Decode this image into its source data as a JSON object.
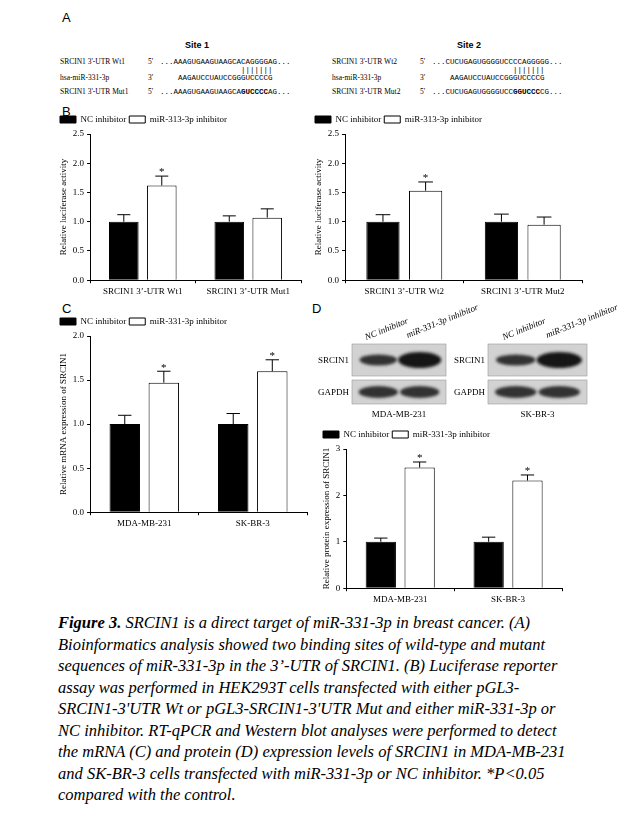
{
  "panel_labels": [
    "A",
    "B",
    "C",
    "D"
  ],
  "panel_A": {
    "sites": [
      {
        "title": "Site 1",
        "wt": {
          "name": "SRCIN1 3'-UTR Wt1",
          "end": "5'",
          "sequence": "...AAAGUGAAGUAAGCACAGGGGAG..."
        },
        "pairing": "|||||||",
        "mirna": {
          "name": "hsa-miR-331-3p",
          "end": "3'",
          "sequence": "AAGAUCCUAUCCGGGUCCCCG"
        },
        "mut": {
          "name": "SRCIN1 3'-UTR Mut1",
          "end": "5'",
          "before": "...AAAGUGAAGUAAGCA",
          "mutated": "GUCCCC",
          "after": "AG..."
        }
      },
      {
        "title": "Site 2",
        "wt": {
          "name": "SRCIN1 3'-UTR Wt2",
          "end": "5'",
          "sequence": "...CUCUGAGUGGGGUCCCCAGGGGG..."
        },
        "pairing": "|||||||",
        "mirna": {
          "name": "hsa-miR-331-3p",
          "end": "3'",
          "sequence": "AAGAUCCUAUCCGGGUCCCCG"
        },
        "mut": {
          "name": "SRCIN1 3'-UTR Mut2",
          "end": "5'",
          "before": "...CUCUGAGUGGGGUCC",
          "mutated": "GGUCCC",
          "after": "CG..."
        }
      }
    ]
  },
  "chart_data": [
    {
      "type": "bar",
      "categories": [
        "SRCIN1 3’-UTR Wt1",
        "SRCIN1 3’-UTR Mut1"
      ],
      "series": [
        {
          "name": "NC inhibitor",
          "color": "#000000",
          "values": [
            1.0,
            1.0
          ],
          "errors": [
            0.12,
            0.1
          ]
        },
        {
          "name": "miR-313-3p inhibitor",
          "color": "#ffffff",
          "values": [
            1.62,
            1.07
          ],
          "errors": [
            0.16,
            0.15
          ],
          "significance": [
            "*",
            null
          ]
        }
      ],
      "ylabel": "Relative luciferase activity",
      "ylim": [
        0,
        2.5
      ],
      "yticks": [
        {
          "value": 0,
          "label": "0.0"
        },
        0.5,
        {
          "value": 1,
          "label": "1.0"
        },
        1.5,
        {
          "value": 2,
          "label": "2.0"
        },
        2.5
      ],
      "legend": "top-left",
      "grid": false
    },
    {
      "type": "bar",
      "categories": [
        "SRCIN1 3’-UTR Wt2",
        "SRCIN1 3’-UTR Mut2"
      ],
      "series": [
        {
          "name": "NC inhibitor",
          "color": "#000000",
          "values": [
            1.0,
            1.0
          ],
          "errors": [
            0.12,
            0.13
          ]
        },
        {
          "name": "miR-313-3p inhibitor",
          "color": "#ffffff",
          "values": [
            1.53,
            0.95
          ],
          "errors": [
            0.15,
            0.13
          ],
          "significance": [
            "*",
            null
          ]
        }
      ],
      "ylabel": "Relative luciferase activity",
      "ylim": [
        0,
        2.5
      ],
      "yticks": [
        {
          "value": 0,
          "label": "0.0"
        },
        0.5,
        {
          "value": 1,
          "label": "1.0"
        },
        1.5,
        {
          "value": 2,
          "label": "2.0"
        },
        2.5
      ],
      "legend": "top-left",
      "grid": false
    },
    {
      "type": "bar",
      "categories": [
        "MDA-MB-231",
        "SK-BR-3"
      ],
      "series": [
        {
          "name": "NC inhibitor",
          "color": "#000000",
          "values": [
            1.0,
            1.0
          ],
          "errors": [
            0.1,
            0.12
          ]
        },
        {
          "name": "miR-331-3p inhibitor",
          "color": "#ffffff",
          "values": [
            1.47,
            1.6
          ],
          "errors": [
            0.13,
            0.13
          ],
          "significance": [
            "*",
            "*"
          ]
        }
      ],
      "ylabel": "Relative mRNA expression of SRCIN1",
      "ylim": [
        0,
        2.0
      ],
      "yticks": [
        {
          "value": 0,
          "label": "0.0"
        },
        0.5,
        {
          "value": 1,
          "label": "1.0"
        },
        1.5,
        {
          "value": 2,
          "label": "2.0"
        }
      ],
      "legend": "top-left",
      "grid": false
    },
    {
      "type": "bar",
      "categories": [
        "MDA-MB-231",
        "SK-BR-3"
      ],
      "series": [
        {
          "name": "NC inhibitor",
          "color": "#000000",
          "values": [
            1.0,
            1.0
          ],
          "errors": [
            0.08,
            0.1
          ]
        },
        {
          "name": "miR-331-3p inhibitor",
          "color": "#ffffff",
          "values": [
            2.6,
            2.32
          ],
          "errors": [
            0.12,
            0.12
          ],
          "significance": [
            "*",
            "*"
          ]
        }
      ],
      "ylabel": "Relative protein expression of SRCIN1",
      "ylim": [
        0,
        3
      ],
      "yticks": [
        0,
        1,
        2,
        3
      ],
      "legend": "top-left",
      "grid": false
    }
  ],
  "panel_D_blots": {
    "treatments": [
      "NC inhibitor",
      "miR-331-3p inhibitor"
    ],
    "proteins": [
      "SRCIN1",
      "GAPDH"
    ],
    "cell_lines": [
      "MDA-MB-231",
      "SK-BR-3"
    ]
  },
  "caption": {
    "label": "Figure 3.",
    "text": "SRCIN1 is a direct target of miR-331-3p in breast cancer. (A) Bioinformatics analysis showed two binding sites of wild-type and mutant sequences of miR-331-3p in the 3’-UTR of SRCIN1. (B) Luciferase reporter assay was performed in HEK293T cells transfected with either pGL3-SRCIN1-3'UTR Wt or pGL3-SRCIN1-3'UTR Mut and either miR-331-3p or NC inhibitor. RT-qPCR and Western blot analyses were performed to detect the mRNA (C) and protein (D) expression levels of SRCIN1 in MDA-MB-231 and SK-BR-3 cells transfected with miR-331-3p or NC inhibitor. *P<0.05 compared with the control."
  }
}
